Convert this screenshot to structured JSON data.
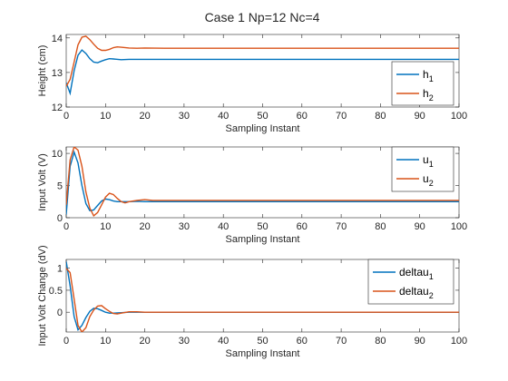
{
  "figure": {
    "title": "Case 1 Np=12 Nc=4"
  },
  "chart_data": [
    {
      "type": "line",
      "xlabel": "Sampling Instant",
      "ylabel": "Height (cm)",
      "xlim": [
        0,
        100
      ],
      "ylim": [
        12,
        14.1
      ],
      "xticks": [
        0,
        10,
        20,
        30,
        40,
        50,
        60,
        70,
        80,
        90,
        100
      ],
      "yticks": [
        12,
        13,
        14
      ],
      "legend_position": "right",
      "series": [
        {
          "name": "h",
          "sub": "1",
          "color": "#0072BD",
          "x": [
            0,
            1,
            2,
            3,
            4,
            5,
            6,
            7,
            8,
            9,
            10,
            11,
            12,
            14,
            16,
            18,
            20,
            25,
            30,
            40,
            50,
            60,
            70,
            80,
            90,
            100
          ],
          "y": [
            12.7,
            12.4,
            13.05,
            13.5,
            13.65,
            13.55,
            13.4,
            13.3,
            13.28,
            13.33,
            13.37,
            13.4,
            13.39,
            13.37,
            13.38,
            13.38,
            13.38,
            13.38,
            13.38,
            13.38,
            13.38,
            13.38,
            13.38,
            13.38,
            13.38,
            13.38
          ]
        },
        {
          "name": "h",
          "sub": "2",
          "color": "#D95319",
          "x": [
            0,
            1,
            2,
            3,
            4,
            5,
            6,
            7,
            8,
            9,
            10,
            11,
            12,
            13,
            14,
            16,
            18,
            20,
            25,
            30,
            40,
            50,
            60,
            70,
            80,
            90,
            100
          ],
          "y": [
            12.6,
            12.8,
            13.3,
            13.8,
            14.02,
            14.05,
            13.95,
            13.82,
            13.7,
            13.64,
            13.64,
            13.67,
            13.72,
            13.74,
            13.73,
            13.71,
            13.7,
            13.71,
            13.7,
            13.7,
            13.7,
            13.7,
            13.7,
            13.7,
            13.7,
            13.7,
            13.7
          ]
        }
      ]
    },
    {
      "type": "line",
      "xlabel": "Sampling Instant",
      "ylabel": "Input Volt (V)",
      "xlim": [
        0,
        100
      ],
      "ylim": [
        0,
        11
      ],
      "xticks": [
        0,
        10,
        20,
        30,
        40,
        50,
        60,
        70,
        80,
        90,
        100
      ],
      "yticks": [
        0,
        5,
        10
      ],
      "legend_position": "top-right",
      "series": [
        {
          "name": "u",
          "sub": "1",
          "color": "#0072BD",
          "x": [
            0,
            1,
            2,
            3,
            4,
            5,
            6,
            7,
            8,
            9,
            10,
            11,
            12,
            13,
            14,
            16,
            18,
            20,
            25,
            30,
            40,
            50,
            60,
            70,
            80,
            90,
            100
          ],
          "y": [
            0.5,
            8,
            10.2,
            8.5,
            5,
            2.2,
            1.1,
            1.2,
            1.9,
            2.6,
            2.9,
            2.8,
            2.6,
            2.5,
            2.5,
            2.5,
            2.55,
            2.5,
            2.5,
            2.5,
            2.5,
            2.5,
            2.5,
            2.5,
            2.5,
            2.5,
            2.5
          ]
        },
        {
          "name": "u",
          "sub": "2",
          "color": "#D95319",
          "x": [
            0,
            1,
            2,
            3,
            4,
            5,
            6,
            7,
            8,
            9,
            10,
            11,
            12,
            13,
            14,
            15,
            16,
            18,
            20,
            22,
            25,
            30,
            40,
            50,
            60,
            70,
            80,
            90,
            100
          ],
          "y": [
            2,
            9,
            11,
            10.5,
            8,
            4,
            1.5,
            0.3,
            0.8,
            2,
            3.2,
            3.8,
            3.6,
            3,
            2.5,
            2.3,
            2.5,
            2.7,
            2.8,
            2.7,
            2.7,
            2.7,
            2.7,
            2.7,
            2.7,
            2.7,
            2.7,
            2.7,
            2.7
          ]
        }
      ]
    },
    {
      "type": "line",
      "xlabel": "Sampling Instant",
      "ylabel": "Input Volt Change (dV)",
      "xlim": [
        0,
        100
      ],
      "ylim": [
        -0.45,
        1.2
      ],
      "xticks": [
        0,
        10,
        20,
        30,
        40,
        50,
        60,
        70,
        80,
        90,
        100
      ],
      "yticks": [
        0,
        0.5,
        1
      ],
      "yticklabels": [
        "0",
        "0.5",
        "1"
      ],
      "legend_position": "top-right",
      "series": [
        {
          "name": "deltau",
          "sub": "1",
          "color": "#0072BD",
          "x": [
            0,
            1,
            2,
            3,
            4,
            5,
            6,
            7,
            8,
            9,
            10,
            11,
            12,
            14,
            16,
            20,
            30,
            40,
            50,
            60,
            70,
            80,
            90,
            100
          ],
          "y": [
            1.15,
            0.6,
            -0.1,
            -0.4,
            -0.3,
            -0.12,
            0.02,
            0.09,
            0.08,
            0.04,
            0,
            -0.02,
            -0.02,
            -0.01,
            0,
            0,
            0,
            0,
            0,
            0,
            0,
            0,
            0,
            0
          ]
        },
        {
          "name": "deltau",
          "sub": "2",
          "color": "#D95319",
          "x": [
            0,
            1,
            2,
            3,
            4,
            5,
            6,
            7,
            8,
            9,
            10,
            11,
            12,
            13,
            14,
            16,
            18,
            20,
            30,
            40,
            50,
            60,
            70,
            80,
            90,
            100
          ],
          "y": [
            1.0,
            0.9,
            0.3,
            -0.3,
            -0.45,
            -0.35,
            -0.1,
            0.05,
            0.14,
            0.15,
            0.08,
            0.02,
            -0.03,
            -0.04,
            -0.02,
            0.01,
            0.01,
            0,
            0,
            0,
            0,
            0,
            0,
            0,
            0,
            0
          ]
        }
      ]
    }
  ]
}
